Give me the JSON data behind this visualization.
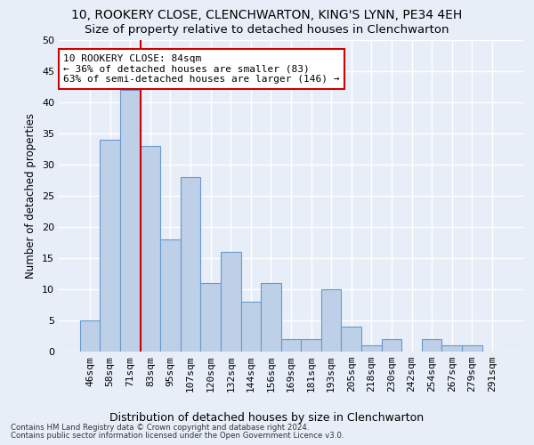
{
  "title1": "10, ROOKERY CLOSE, CLENCHWARTON, KING'S LYNN, PE34 4EH",
  "title2": "Size of property relative to detached houses in Clenchwarton",
  "xlabel": "Distribution of detached houses by size in Clenchwarton",
  "ylabel": "Number of detached properties",
  "footer1": "Contains HM Land Registry data © Crown copyright and database right 2024.",
  "footer2": "Contains public sector information licensed under the Open Government Licence v3.0.",
  "annotation_line1": "10 ROOKERY CLOSE: 84sqm",
  "annotation_line2": "← 36% of detached houses are smaller (83)",
  "annotation_line3": "63% of semi-detached houses are larger (146) →",
  "categories": [
    "46sqm",
    "58sqm",
    "71sqm",
    "83sqm",
    "95sqm",
    "107sqm",
    "120sqm",
    "132sqm",
    "144sqm",
    "156sqm",
    "169sqm",
    "181sqm",
    "193sqm",
    "205sqm",
    "218sqm",
    "230sqm",
    "242sqm",
    "254sqm",
    "267sqm",
    "279sqm",
    "291sqm"
  ],
  "values": [
    5,
    34,
    42,
    33,
    18,
    28,
    11,
    16,
    8,
    11,
    2,
    2,
    10,
    4,
    1,
    2,
    0,
    2,
    1,
    1,
    0
  ],
  "bar_color": "#bdd0e8",
  "bar_edge_color": "#6699cc",
  "red_line_x": 2.5,
  "annotation_box_color": "#ffffff",
  "annotation_box_edge_color": "#cc0000",
  "background_color": "#e8eef8",
  "grid_color": "#ffffff",
  "ylim": [
    0,
    50
  ],
  "yticks": [
    0,
    5,
    10,
    15,
    20,
    25,
    30,
    35,
    40,
    45,
    50
  ],
  "title1_fontsize": 10,
  "title2_fontsize": 9.5,
  "xlabel_fontsize": 9,
  "ylabel_fontsize": 8.5,
  "tick_fontsize": 8,
  "ann_fontsize": 8
}
